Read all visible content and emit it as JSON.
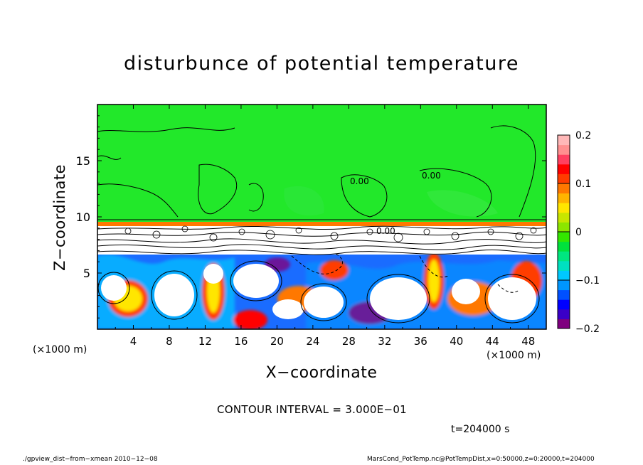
{
  "chart_data": {
    "type": "heatmap",
    "title": "disturbunce of potential temperature",
    "xlabel": "X−coordinate",
    "ylabel": "Z−coordinate",
    "x_unit": "(×1000 m)",
    "x_ticks": [
      4,
      8,
      12,
      16,
      20,
      24,
      28,
      32,
      36,
      40,
      44,
      48
    ],
    "y_ticks": [
      5,
      10,
      15
    ],
    "xlim": [
      0,
      50
    ],
    "ylim": [
      0,
      20
    ],
    "colorbar": {
      "ticks": [
        "0.2",
        "0.1",
        "0",
        "−0.1",
        "−0.2"
      ],
      "range": [
        -0.2,
        0.2
      ],
      "colors": [
        "#7f007f",
        "#3a00c8",
        "#0000ff",
        "#0050ff",
        "#0096ff",
        "#00c8ff",
        "#00e0c0",
        "#00e680",
        "#00e13c",
        "#33e600",
        "#8ce600",
        "#c8e600",
        "#ffe600",
        "#ffb400",
        "#ff7800",
        "#ff3c00",
        "#ff0000",
        "#ff4060",
        "#ff9090",
        "#ffb8b8"
      ]
    },
    "contour_labels": [
      "0.00",
      "0.00",
      "0.00"
    ],
    "contour_interval": "CONTOUR INTERVAL = 3.000E−01",
    "time": "t=204000 s"
  },
  "footer": {
    "left": "./gpview_dist−from−xmean   2010−12−08",
    "right": "MarsCond_PotTemp.nc@PotTempDist,x=0:50000,z=0:20000,t=204000"
  }
}
